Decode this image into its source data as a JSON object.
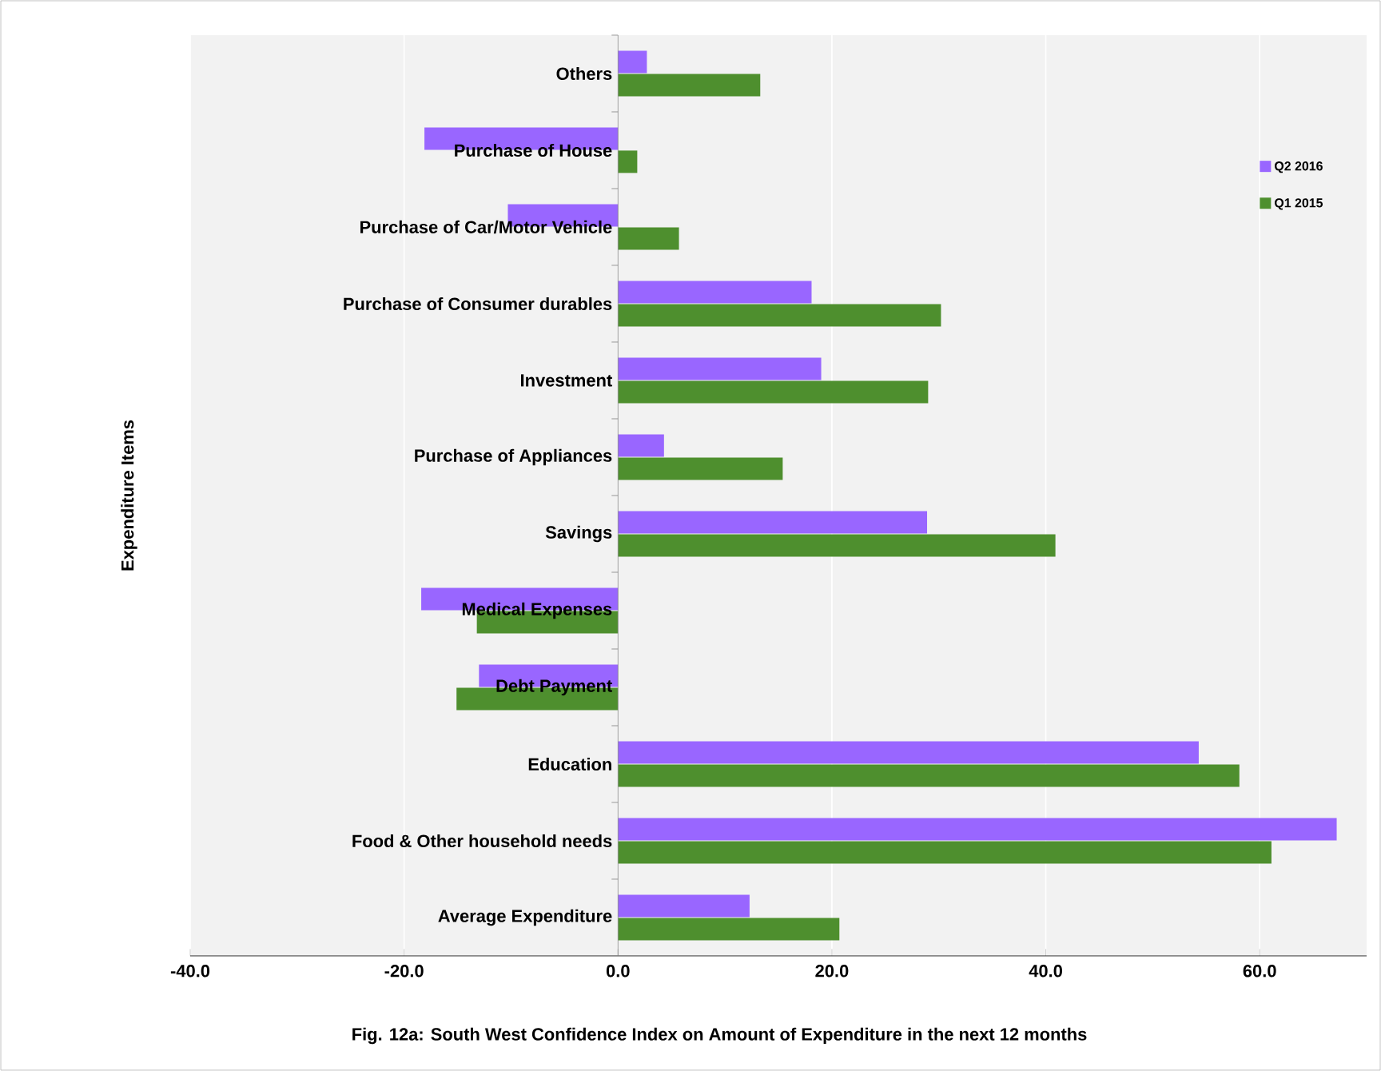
{
  "chart_data": {
    "type": "bar",
    "orientation": "horizontal",
    "ylabel": "Expenditure Items",
    "annotations": [
      "Fig. 12a: South West  Confidence Index on  Amount of Expenditure in the next 12 months"
    ],
    "categories": [
      "Others",
      "Purchase of House",
      "Purchase of Car/Motor Vehicle",
      "Purchase of Consumer durables",
      "Investment",
      "Purchase of Appliances",
      "Savings",
      "Medical Expenses",
      "Debt Payment",
      "Education",
      "Food & Other household needs",
      "Average Expenditure"
    ],
    "series": [
      {
        "name": "Q2 2016",
        "color": "#9966ff",
        "values": [
          2.7,
          -18.1,
          -10.3,
          18.1,
          19.0,
          4.3,
          28.9,
          -18.4,
          -13.0,
          54.3,
          67.2,
          12.3
        ]
      },
      {
        "name": "Q1 2015",
        "color": "#4e8f2e",
        "values": [
          13.3,
          1.8,
          5.7,
          30.2,
          29.0,
          15.4,
          40.9,
          -13.2,
          -15.1,
          58.1,
          61.1,
          20.7
        ]
      }
    ],
    "xlim": [
      -40,
      70
    ],
    "xticks": [
      {
        "value": -40,
        "label": "-40.0"
      },
      {
        "value": -20,
        "label": "-20.0"
      },
      {
        "value": 0,
        "label": "0.0"
      },
      {
        "value": 20,
        "label": "20.0"
      },
      {
        "value": 40,
        "label": "40.0"
      },
      {
        "value": 60,
        "label": "60.0"
      }
    ],
    "grid": "x",
    "legend": "top right"
  }
}
